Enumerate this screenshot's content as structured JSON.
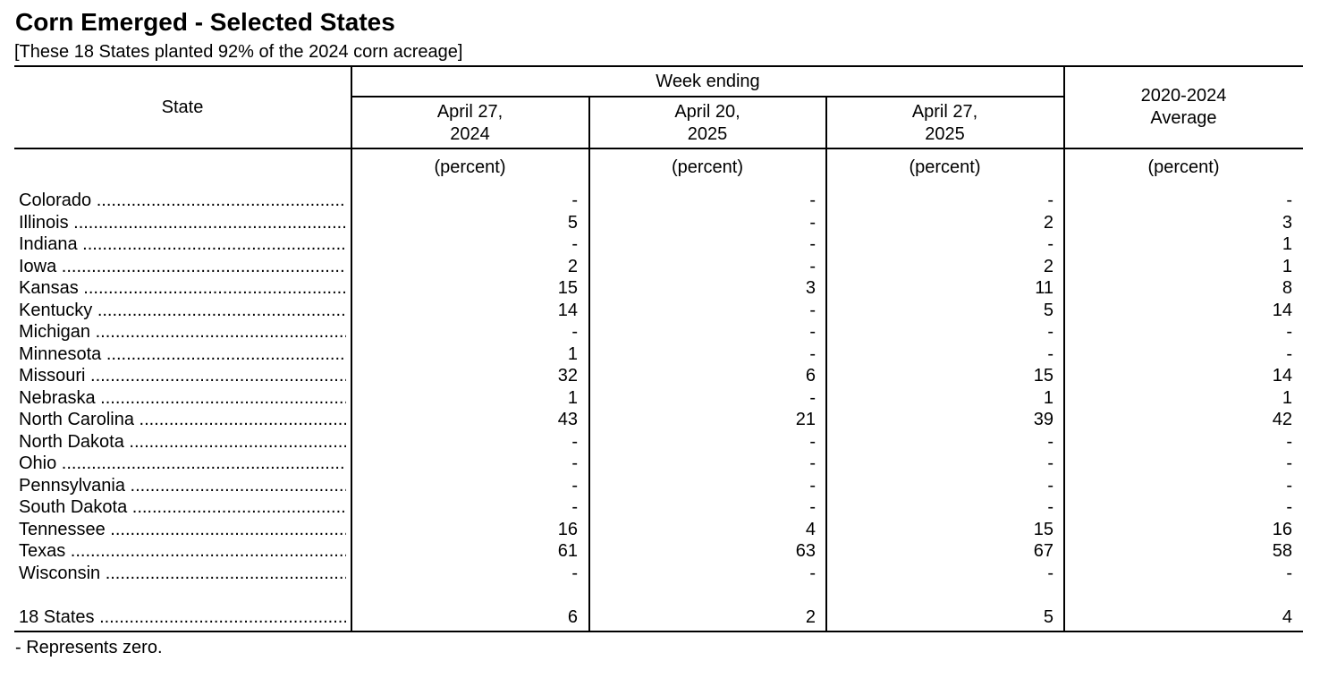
{
  "title": "Corn Emerged - Selected States",
  "subtitle": "[These 18 States planted 92% of the 2024 corn acreage]",
  "headers": {
    "state": "State",
    "week_ending": "Week ending",
    "col1_line1": "April 27,",
    "col1_line2": "2024",
    "col2_line1": "April 20,",
    "col2_line2": "2025",
    "col3_line1": "April 27,",
    "col3_line2": "2025",
    "col4_line1": "2020-2024",
    "col4_line2": "Average",
    "unit": "(percent)"
  },
  "rows": [
    {
      "state": "Colorado",
      "v": [
        "-",
        "-",
        "-",
        "-"
      ]
    },
    {
      "state": "Illinois",
      "v": [
        "5",
        "-",
        "2",
        "3"
      ]
    },
    {
      "state": "Indiana",
      "v": [
        "-",
        "-",
        "-",
        "1"
      ]
    },
    {
      "state": "Iowa",
      "v": [
        "2",
        "-",
        "2",
        "1"
      ]
    },
    {
      "state": "Kansas",
      "v": [
        "15",
        "3",
        "11",
        "8"
      ]
    },
    {
      "state": "Kentucky",
      "v": [
        "14",
        "-",
        "5",
        "14"
      ]
    },
    {
      "state": "Michigan",
      "v": [
        "-",
        "-",
        "-",
        "-"
      ]
    },
    {
      "state": "Minnesota",
      "v": [
        "1",
        "-",
        "-",
        "-"
      ]
    },
    {
      "state": "Missouri",
      "v": [
        "32",
        "6",
        "15",
        "14"
      ]
    },
    {
      "state": "Nebraska",
      "v": [
        "1",
        "-",
        "1",
        "1"
      ]
    },
    {
      "state": "North Carolina",
      "v": [
        "43",
        "21",
        "39",
        "42"
      ]
    },
    {
      "state": "North Dakota",
      "v": [
        "-",
        "-",
        "-",
        "-"
      ]
    },
    {
      "state": "Ohio",
      "v": [
        "-",
        "-",
        "-",
        "-"
      ]
    },
    {
      "state": "Pennsylvania",
      "v": [
        "-",
        "-",
        "-",
        "-"
      ]
    },
    {
      "state": "South Dakota",
      "v": [
        "-",
        "-",
        "-",
        "-"
      ]
    },
    {
      "state": "Tennessee",
      "v": [
        "16",
        "4",
        "15",
        "16"
      ]
    },
    {
      "state": "Texas",
      "v": [
        "61",
        "63",
        "67",
        "58"
      ]
    },
    {
      "state": "Wisconsin",
      "v": [
        "-",
        "-",
        "-",
        "-"
      ]
    }
  ],
  "total": {
    "state": "18 States",
    "v": [
      "6",
      "2",
      "5",
      "4"
    ]
  },
  "footnote": "- Represents zero."
}
